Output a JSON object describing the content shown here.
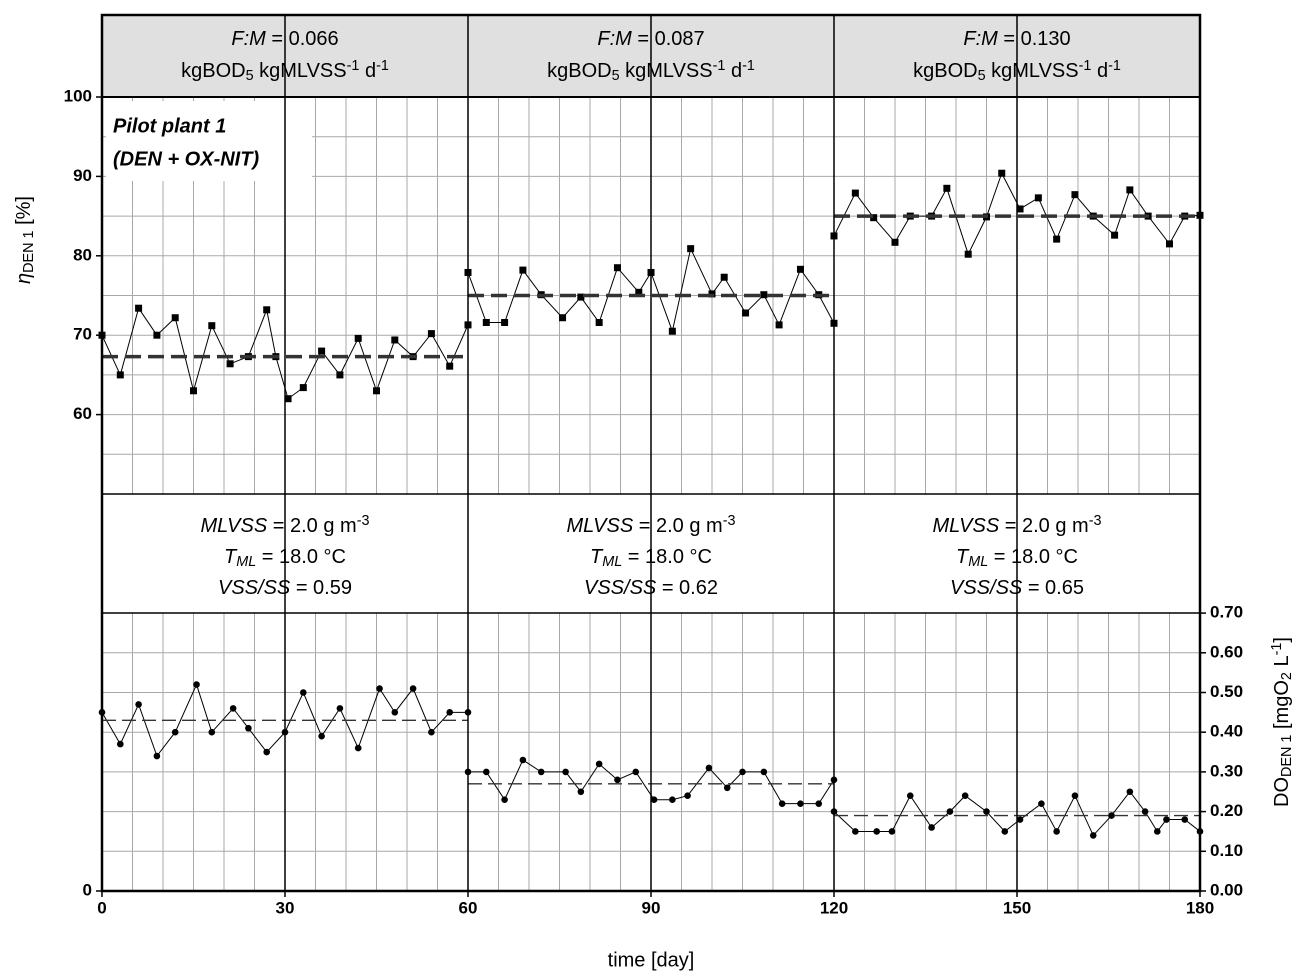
{
  "chart_data": {
    "type": "line",
    "annotation": [
      "Pilot plant 1",
      "(DEN + OX-NIT)"
    ],
    "x_label": "time [day]",
    "y_label": [
      {
        "t": "η",
        "i": 1
      },
      {
        "t": "DEN 1",
        "sub": 1
      },
      {
        "t": " [%]"
      }
    ],
    "y2_label": [
      {
        "t": "DO"
      },
      {
        "t": "DEN 1",
        "sub": 1
      },
      {
        "t": " [mgO"
      },
      {
        "t": "2",
        "sub": 1
      },
      {
        "t": " L"
      },
      {
        "t": "-1",
        "sup": 1
      },
      {
        "t": "]"
      }
    ],
    "xlim": [
      0,
      180
    ],
    "xticks": [
      0,
      30,
      60,
      90,
      120,
      150,
      180
    ],
    "xgrid_step": 5,
    "ylim": [
      0,
      100
    ],
    "yticks": [
      0,
      60,
      70,
      80,
      90,
      100
    ],
    "ygrid_step": 5,
    "y2lim": [
      0,
      2
    ],
    "y2ticks": [
      {
        "value": 0,
        "label": "0.00"
      },
      {
        "value": 0.1,
        "label": "0.10"
      },
      {
        "value": 0.2,
        "label": "0.20"
      },
      {
        "value": 0.3,
        "label": "0.30"
      },
      {
        "value": 0.4,
        "label": "0.40"
      },
      {
        "value": 0.5,
        "label": "0.50"
      },
      {
        "value": 0.6,
        "label": "0.60"
      },
      {
        "value": 0.7,
        "label": "0.70"
      }
    ],
    "grid": true,
    "panels": [
      {
        "header": [
          [
            {
              "t": "F:M",
              "i": 1
            },
            {
              "t": " = 0.066"
            }
          ],
          [
            {
              "t": "kgBOD"
            },
            {
              "t": "5",
              "sub": 1
            },
            {
              "t": " kgMLVSS"
            },
            {
              "t": "-1",
              "sup": 1
            },
            {
              "t": " d"
            },
            {
              "t": "-1",
              "sup": 1
            }
          ]
        ],
        "conditions": [
          [
            {
              "t": "MLVSS",
              "i": 1
            },
            {
              "t": " = 2.0 g m"
            },
            {
              "t": "-3",
              "sup": 1
            }
          ],
          [
            {
              "t": "T",
              "i": 1
            },
            {
              "t": "ML",
              "i": 1,
              "sub": 1
            },
            {
              "t": " = 18.0 °C"
            }
          ],
          [
            {
              "t": "VSS/SS",
              "i": 1
            },
            {
              "t": " = 0.59"
            }
          ]
        ]
      },
      {
        "header": [
          [
            {
              "t": "F:M",
              "i": 1
            },
            {
              "t": " = 0.087"
            }
          ],
          [
            {
              "t": "kgBOD"
            },
            {
              "t": "5",
              "sub": 1
            },
            {
              "t": " kgMLVSS"
            },
            {
              "t": "-1",
              "sup": 1
            },
            {
              "t": " d"
            },
            {
              "t": "-1",
              "sup": 1
            }
          ]
        ],
        "conditions": [
          [
            {
              "t": "MLVSS",
              "i": 1
            },
            {
              "t": " = 2.0 g m"
            },
            {
              "t": "-3",
              "sup": 1
            }
          ],
          [
            {
              "t": "T",
              "i": 1
            },
            {
              "t": "ML",
              "i": 1,
              "sub": 1
            },
            {
              "t": " = 18.0 °C"
            }
          ],
          [
            {
              "t": "VSS/SS",
              "i": 1
            },
            {
              "t": " = 0.62"
            }
          ]
        ]
      },
      {
        "header": [
          [
            {
              "t": "F:M",
              "i": 1
            },
            {
              "t": " = 0.130"
            }
          ],
          [
            {
              "t": "kgBOD"
            },
            {
              "t": "5",
              "sub": 1
            },
            {
              "t": " kgMLVSS"
            },
            {
              "t": "-1",
              "sup": 1
            },
            {
              "t": " d"
            },
            {
              "t": "-1",
              "sup": 1
            }
          ]
        ],
        "conditions": [
          [
            {
              "t": "MLVSS",
              "i": 1
            },
            {
              "t": " = 2.0 g m"
            },
            {
              "t": "-3",
              "sup": 1
            }
          ],
          [
            {
              "t": "T",
              "i": 1
            },
            {
              "t": "ML",
              "i": 1,
              "sub": 1
            },
            {
              "t": " = 18.0 °C"
            }
          ],
          [
            {
              "t": "VSS/SS",
              "i": 1
            },
            {
              "t": " = 0.65"
            }
          ]
        ]
      }
    ],
    "series": [
      {
        "color": "#000000",
        "marker": "square",
        "axis": "y",
        "x": [
          0,
          3,
          6,
          9,
          12,
          15,
          18,
          21,
          24,
          27,
          28.5,
          30.5,
          33,
          36,
          39,
          42,
          45,
          48,
          51,
          54,
          57,
          60,
          60,
          63,
          66,
          69,
          72,
          75.5,
          78.5,
          81.5,
          84.5,
          88,
          90,
          93.5,
          96.5,
          100,
          102,
          105.5,
          108.5,
          111,
          114.5,
          117.5,
          120,
          120,
          123.5,
          126.5,
          130,
          132.5,
          136,
          138.5,
          142,
          145,
          147.5,
          150.5,
          153.5,
          156.5,
          159.5,
          162.5,
          166,
          168.5,
          171.5,
          175,
          177.5,
          180
        ],
        "values": [
          70.0,
          65.0,
          73.4,
          70.0,
          72.2,
          63.0,
          71.2,
          66.4,
          67.3,
          73.2,
          67.3,
          62.0,
          63.4,
          68.0,
          65.0,
          69.6,
          63.0,
          69.4,
          67.3,
          70.2,
          66.1,
          71.3,
          77.9,
          71.6,
          71.6,
          78.2,
          75.1,
          72.2,
          74.8,
          71.6,
          78.5,
          75.4,
          77.9,
          70.5,
          80.9,
          75.2,
          77.3,
          72.8,
          75.1,
          71.3,
          78.3,
          75.1,
          71.5,
          82.5,
          87.9,
          84.8,
          81.7,
          85.0,
          85.0,
          88.5,
          80.2,
          84.9,
          90.4,
          85.9,
          87.3,
          82.1,
          87.7,
          85.0,
          82.6,
          88.3,
          85.0,
          81.5,
          85.0,
          85.1
        ]
      },
      {
        "color": "#333333",
        "style": "dashed",
        "width": 3.5,
        "axis": "y",
        "x": [
          0,
          60
        ],
        "values": [
          67.3,
          67.3
        ]
      },
      {
        "color": "#333333",
        "style": "dashed",
        "width": 3.5,
        "axis": "y",
        "x": [
          60,
          120
        ],
        "values": [
          75.0,
          75.0
        ]
      },
      {
        "color": "#333333",
        "style": "dashed",
        "width": 3.5,
        "axis": "y",
        "x": [
          120,
          180
        ],
        "values": [
          85.0,
          85.0
        ]
      },
      {
        "color": "#000000",
        "marker": "circle",
        "axis": "y2",
        "x": [
          0,
          3,
          6,
          9,
          12,
          15.5,
          18,
          21.5,
          24,
          27,
          30,
          33,
          36,
          39,
          42,
          45.5,
          48,
          51,
          54,
          57,
          60,
          60,
          63,
          66,
          69,
          72,
          76,
          78.5,
          81.5,
          84.5,
          87.5,
          90.5,
          93.5,
          96,
          99.5,
          102.5,
          105,
          108.5,
          111.5,
          114.5,
          117.5,
          120,
          120,
          123.5,
          127,
          129.5,
          132.5,
          136,
          139,
          141.5,
          145,
          148,
          150.5,
          154,
          156.5,
          159.5,
          162.5,
          165.5,
          168.5,
          171,
          173,
          174.5,
          177.5,
          180
        ],
        "values": [
          0.45,
          0.37,
          0.47,
          0.34,
          0.4,
          0.52,
          0.4,
          0.46,
          0.41,
          0.35,
          0.4,
          0.5,
          0.39,
          0.46,
          0.36,
          0.51,
          0.45,
          0.51,
          0.4,
          0.45,
          0.45,
          0.3,
          0.3,
          0.23,
          0.33,
          0.3,
          0.3,
          0.25,
          0.32,
          0.28,
          0.3,
          0.23,
          0.23,
          0.24,
          0.31,
          0.26,
          0.3,
          0.3,
          0.22,
          0.22,
          0.22,
          0.28,
          0.2,
          0.15,
          0.15,
          0.15,
          0.24,
          0.16,
          0.2,
          0.24,
          0.2,
          0.15,
          0.18,
          0.22,
          0.15,
          0.24,
          0.14,
          0.19,
          0.25,
          0.2,
          0.15,
          0.18,
          0.18,
          0.15
        ]
      },
      {
        "color": "#333333",
        "style": "dashed",
        "width": 1.3,
        "axis": "y2",
        "x": [
          0,
          60
        ],
        "values": [
          0.43,
          0.43
        ]
      },
      {
        "color": "#333333",
        "style": "dashed",
        "width": 1.3,
        "axis": "y2",
        "x": [
          60,
          120
        ],
        "values": [
          0.27,
          0.27
        ]
      },
      {
        "color": "#333333",
        "style": "dashed",
        "width": 1.3,
        "axis": "y2",
        "x": [
          120,
          180
        ],
        "values": [
          0.19,
          0.19
        ]
      }
    ]
  }
}
